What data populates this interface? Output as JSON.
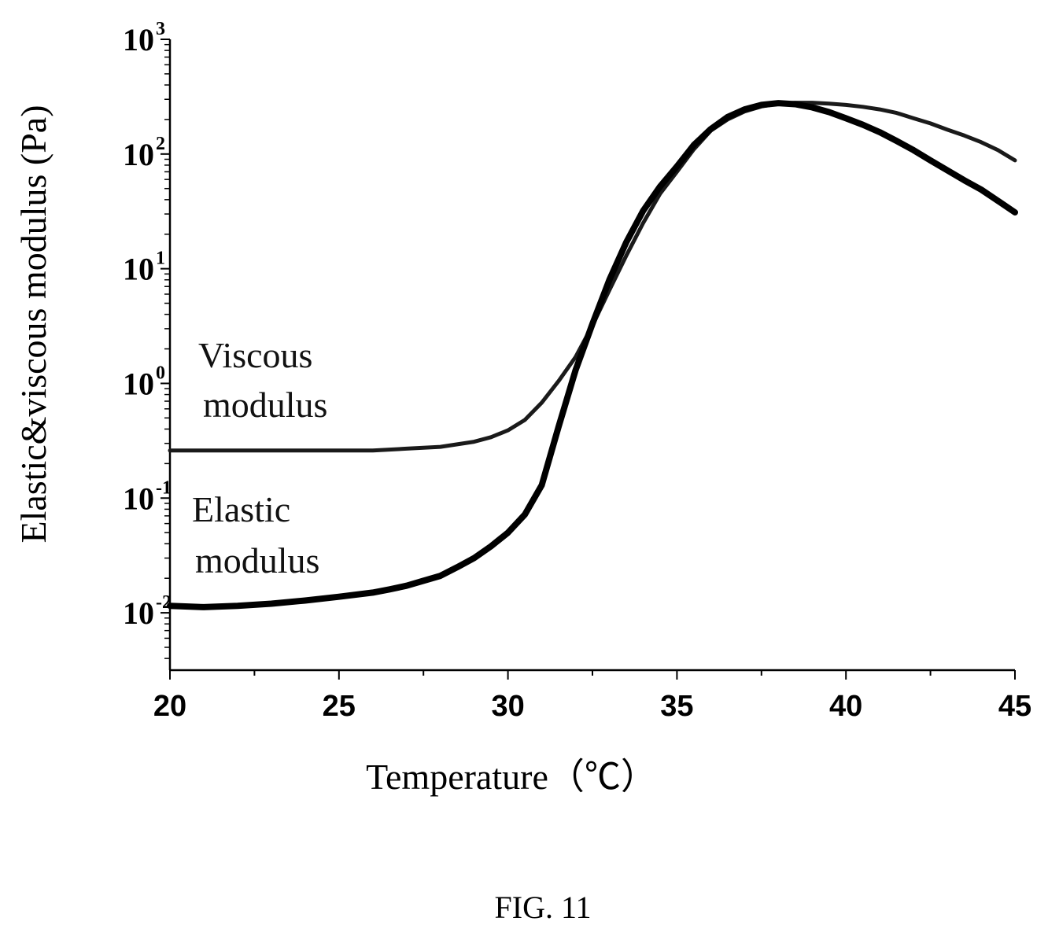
{
  "caption": "FIG. 11",
  "chart_data": {
    "type": "line",
    "title": "",
    "xlabel": "Temperature（℃）",
    "ylabel": "Elastic&viscous modulus (Pa)",
    "xlim": [
      20,
      45
    ],
    "ylim_log10": [
      -2.5,
      3
    ],
    "yscale": "log",
    "grid": false,
    "x_ticks": [
      20,
      25,
      30,
      35,
      40,
      45
    ],
    "y_ticks": [
      {
        "base": "10",
        "exp": "-2"
      },
      {
        "base": "10",
        "exp": "-1"
      },
      {
        "base": "10",
        "exp": "0"
      },
      {
        "base": "10",
        "exp": "1"
      },
      {
        "base": "10",
        "exp": "2"
      },
      {
        "base": "10",
        "exp": "3"
      }
    ],
    "annotations": [
      {
        "line1": "Viscous",
        "line2": "modulus",
        "series": "viscous"
      },
      {
        "line1": "Elastic",
        "line2": "modulus",
        "series": "elastic"
      }
    ],
    "series": [
      {
        "name": "Viscous modulus",
        "color": "#1a1a1a",
        "x": [
          20,
          22,
          24,
          26,
          27,
          28,
          29,
          29.5,
          30,
          30.5,
          31,
          31.5,
          32,
          32.5,
          33,
          33.5,
          34,
          34.5,
          35,
          35.5,
          36,
          36.5,
          37,
          37.5,
          38,
          38.5,
          39,
          39.5,
          40,
          40.5,
          41,
          41.5,
          42,
          42.5,
          43,
          43.5,
          44,
          44.5,
          45
        ],
        "y": [
          0.26,
          0.26,
          0.26,
          0.26,
          0.27,
          0.28,
          0.31,
          0.34,
          0.39,
          0.48,
          0.68,
          1.05,
          1.7,
          3.2,
          6.5,
          13,
          25,
          45,
          70,
          110,
          160,
          200,
          235,
          260,
          275,
          280,
          280,
          275,
          268,
          258,
          245,
          228,
          205,
          185,
          163,
          145,
          127,
          108,
          88
        ]
      },
      {
        "name": "Elastic modulus",
        "color": "#000000",
        "x": [
          20,
          21,
          22,
          23,
          24,
          25,
          26,
          26.5,
          27,
          27.5,
          28,
          28.5,
          29,
          29.5,
          30,
          30.5,
          31,
          31.5,
          32,
          32.5,
          33,
          33.5,
          34,
          34.5,
          35,
          35.5,
          36,
          36.5,
          37,
          37.5,
          38,
          38.5,
          39,
          39.5,
          40,
          40.5,
          41,
          41.5,
          42,
          42.5,
          43,
          43.5,
          44,
          44.5,
          45
        ],
        "y": [
          0.0115,
          0.0112,
          0.0115,
          0.012,
          0.0128,
          0.0138,
          0.015,
          0.016,
          0.0172,
          0.019,
          0.021,
          0.025,
          0.03,
          0.038,
          0.05,
          0.072,
          0.13,
          0.42,
          1.3,
          3.3,
          8,
          17,
          32,
          52,
          78,
          120,
          165,
          210,
          245,
          268,
          278,
          272,
          255,
          232,
          205,
          180,
          155,
          130,
          108,
          88,
          72,
          59,
          49,
          39,
          31
        ]
      }
    ]
  }
}
